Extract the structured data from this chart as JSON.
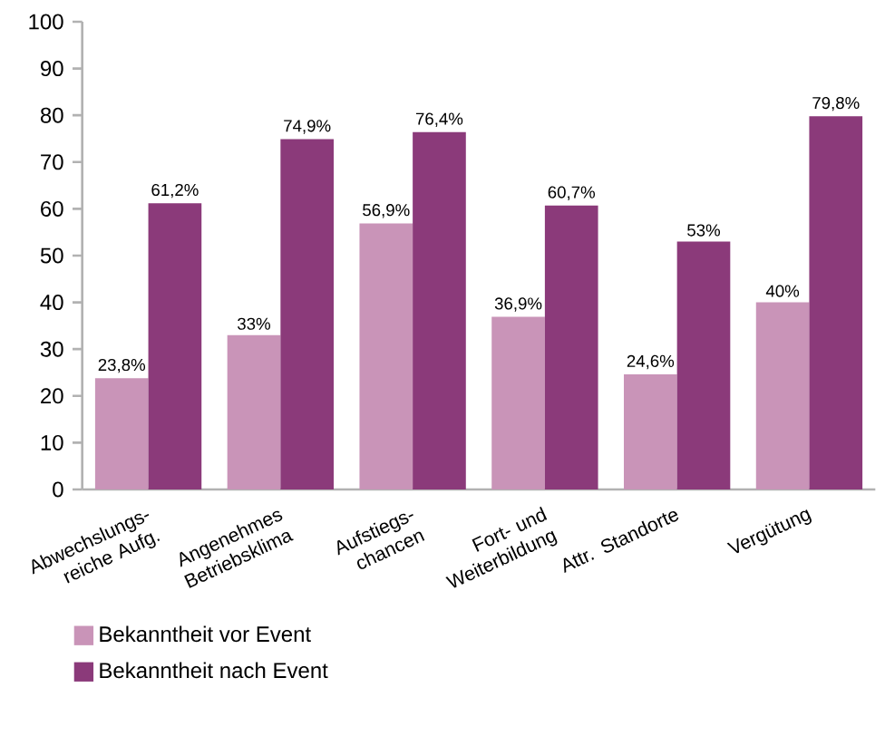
{
  "chart_data": {
    "type": "bar",
    "categories": [
      "Abwechslungs-reiche Aufg.",
      "Angenehmes Betriebsklima",
      "Aufstiegs-chancen",
      "Fort- und Weiterbildung",
      "Attr. Standorte",
      "Vergütung"
    ],
    "series": [
      {
        "name": "Bekanntheit vor Event",
        "color": "#c994b8",
        "values": [
          23.8,
          33,
          56.9,
          36.9,
          24.6,
          40
        ],
        "value_labels": [
          "23,8%",
          "33%",
          "56,9%",
          "36,9%",
          "24,6%",
          "40%"
        ]
      },
      {
        "name": "Bekanntheit nach Event",
        "color": "#8b3a7a",
        "values": [
          61.2,
          74.9,
          76.4,
          60.7,
          53,
          79.8
        ],
        "value_labels": [
          "61,2%",
          "74,9%",
          "76,4%",
          "60,7%",
          "53%",
          "79,8%"
        ]
      }
    ],
    "ylim": [
      0,
      100
    ],
    "yticks": [
      0,
      10,
      20,
      30,
      40,
      50,
      60,
      70,
      80,
      90,
      100
    ],
    "grid": false,
    "legend": "bottom"
  }
}
